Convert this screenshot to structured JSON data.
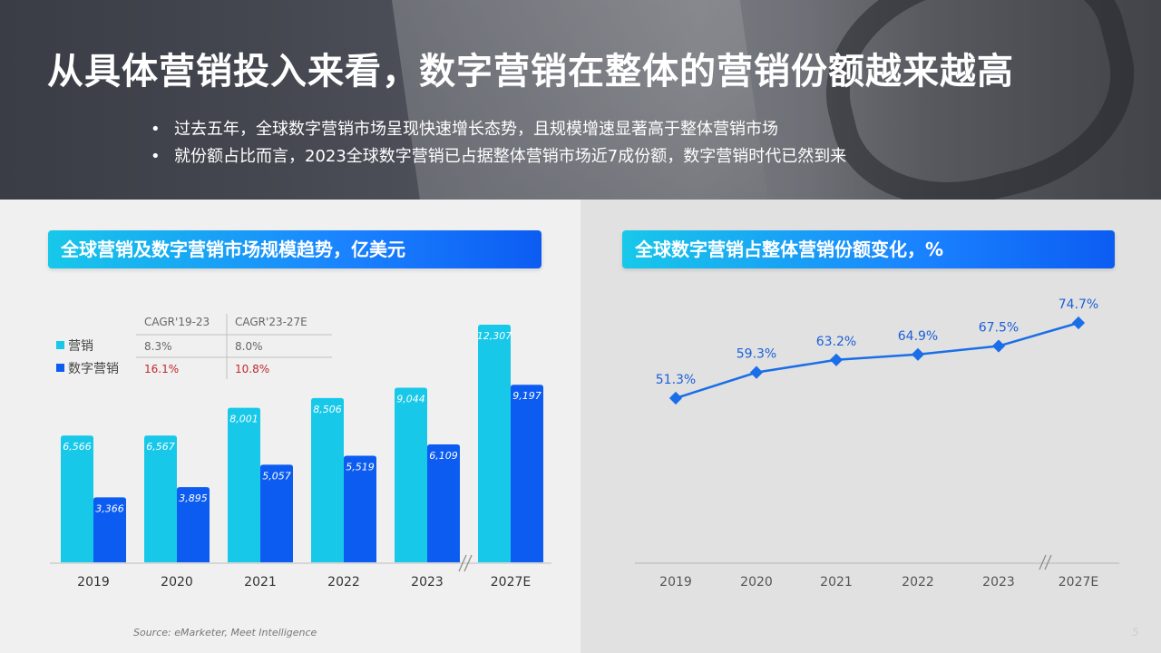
{
  "title": "从具体营销投入来看，数字营销在整体的营销份额越来越高",
  "bullets": [
    "过去五年，全球数字营销市场呈现快速增长态势，且规模增速显著高于整体营销市场",
    "就份额占比而言，2023全球数字营销已占据整体营销市场近7成份额，数字营销时代已然到来"
  ],
  "source": "Source: eMarketer, Meet Intelligence",
  "page_number": "5",
  "colors": {
    "marketing": "#17c8e9",
    "digital": "#0c5cf2",
    "line": "#1a6ee8",
    "cagr_red": "#c0292b"
  },
  "chart_data": [
    {
      "type": "bar",
      "title": "全球营销及数字营销市场规模趋势，亿美元",
      "categories": [
        "2019",
        "2020",
        "2021",
        "2022",
        "2023",
        "2027E"
      ],
      "series": [
        {
          "name": "营销",
          "values": [
            6566,
            6567,
            8001,
            8506,
            9044,
            12307
          ],
          "labels": [
            "6,566",
            "6,567",
            "8,001",
            "8,506",
            "9,044",
            "12,307"
          ]
        },
        {
          "name": "数字营销",
          "values": [
            3366,
            3895,
            5057,
            5519,
            6109,
            9197
          ],
          "labels": [
            "3,366",
            "3,895",
            "5,057",
            "5,519",
            "6,109",
            "9,197"
          ]
        }
      ],
      "cagr_table": {
        "headers": [
          "CAGR'19-23",
          "CAGR'23-27E"
        ],
        "rows": [
          {
            "name": "营销",
            "values": [
              "8.3%",
              "8.0%"
            ]
          },
          {
            "name": "数字营销",
            "values": [
              "16.1%",
              "10.8%"
            ]
          }
        ]
      },
      "axis_break_before": "2027E"
    },
    {
      "type": "line",
      "title": "全球数字营销占整体营销份额变化，%",
      "categories": [
        "2019",
        "2020",
        "2021",
        "2022",
        "2023",
        "2027E"
      ],
      "values": [
        51.3,
        59.3,
        63.2,
        64.9,
        67.5,
        74.7
      ],
      "labels": [
        "51.3%",
        "59.3%",
        "63.2%",
        "64.9%",
        "67.5%",
        "74.7%"
      ],
      "axis_break_before": "2027E"
    }
  ]
}
